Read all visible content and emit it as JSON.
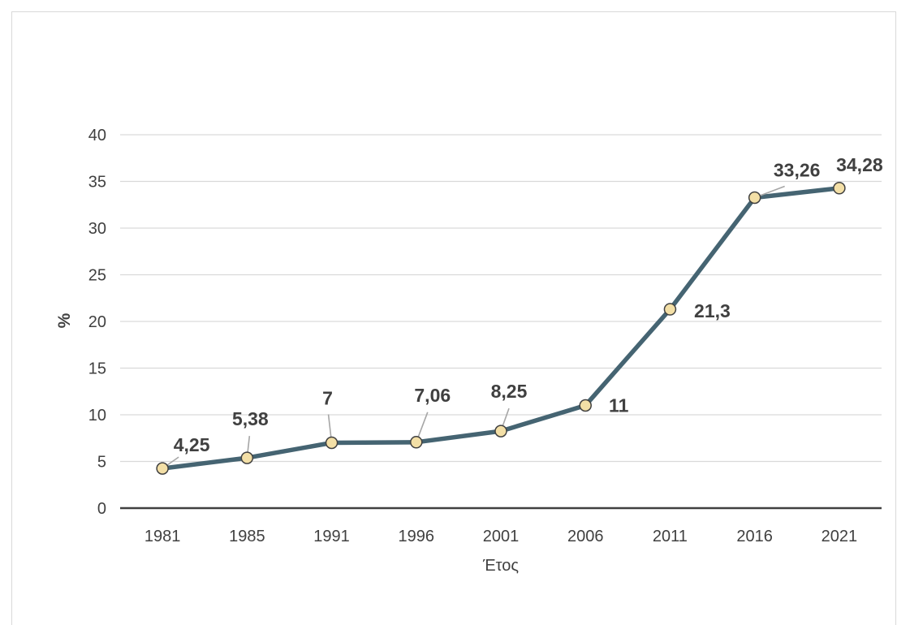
{
  "chart_data": {
    "type": "line",
    "categories": [
      "1981",
      "1985",
      "1991",
      "1996",
      "2001",
      "2006",
      "2011",
      "2016",
      "2021"
    ],
    "series": [
      {
        "values": [
          4.25,
          5.38,
          7,
          7.06,
          8.25,
          11,
          21.3,
          33.26,
          34.28
        ],
        "data_labels": [
          "4,25",
          "5,38",
          "7",
          "7,06",
          "8,25",
          "11",
          "21,3",
          "33,26",
          "34,28"
        ]
      }
    ],
    "xlabel": "Έτος",
    "ylabel": "%",
    "ylim": [
      0,
      40
    ],
    "yticks": [
      0,
      5,
      10,
      15,
      20,
      25,
      30,
      35,
      40
    ],
    "grid": true,
    "legend": "none"
  },
  "colors": {
    "line": "#456472",
    "marker_fill": "#f3dfa6",
    "marker_stroke": "#404040",
    "grid": "#d9d9d9",
    "axis": "#404040",
    "leader": "#a6a6a6"
  }
}
